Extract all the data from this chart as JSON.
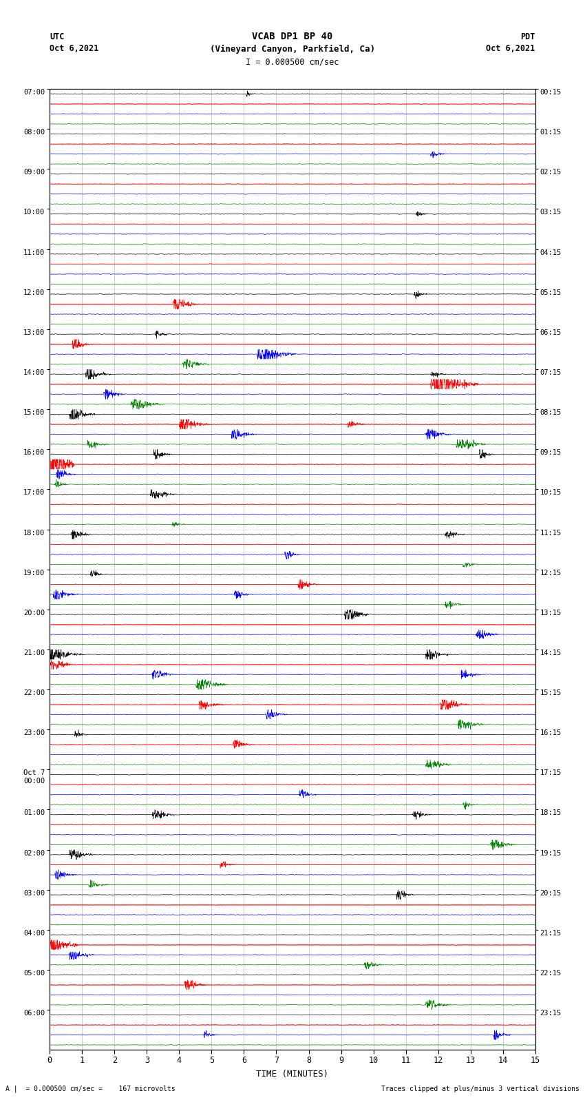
{
  "title_line1": "VCAB DP1 BP 40",
  "title_line2": "(Vineyard Canyon, Parkfield, Ca)",
  "scale_label": "I = 0.000500 cm/sec",
  "left_header": "UTC",
  "left_date": "Oct 6,2021",
  "right_header": "PDT",
  "right_date": "Oct 6,2021",
  "xlabel": "TIME (MINUTES)",
  "footer_left": "A |  = 0.000500 cm/sec =    167 microvolts",
  "footer_right": "Traces clipped at plus/minus 3 vertical divisions",
  "utc_labels": [
    "07:00",
    "08:00",
    "09:00",
    "10:00",
    "11:00",
    "12:00",
    "13:00",
    "14:00",
    "15:00",
    "16:00",
    "17:00",
    "18:00",
    "19:00",
    "20:00",
    "21:00",
    "22:00",
    "23:00",
    "Oct 7\n00:00",
    "01:00",
    "02:00",
    "03:00",
    "04:00",
    "05:00",
    "06:00"
  ],
  "pdt_labels": [
    "00:15",
    "01:15",
    "02:15",
    "03:15",
    "04:15",
    "05:15",
    "06:15",
    "07:15",
    "08:15",
    "09:15",
    "10:15",
    "11:15",
    "12:15",
    "13:15",
    "14:15",
    "15:15",
    "16:15",
    "17:15",
    "18:15",
    "19:15",
    "20:15",
    "21:15",
    "22:15",
    "23:15"
  ],
  "n_rows": 24,
  "traces_per_row": 4,
  "colors": [
    "black",
    "red",
    "blue",
    "green"
  ],
  "bg_color": "white",
  "x_min": 0,
  "x_max": 15,
  "x_ticks": [
    0,
    1,
    2,
    3,
    4,
    5,
    6,
    7,
    8,
    9,
    10,
    11,
    12,
    13,
    14,
    15
  ],
  "grid_color": "#aaaaaa",
  "red_line_color": "#ff0000"
}
